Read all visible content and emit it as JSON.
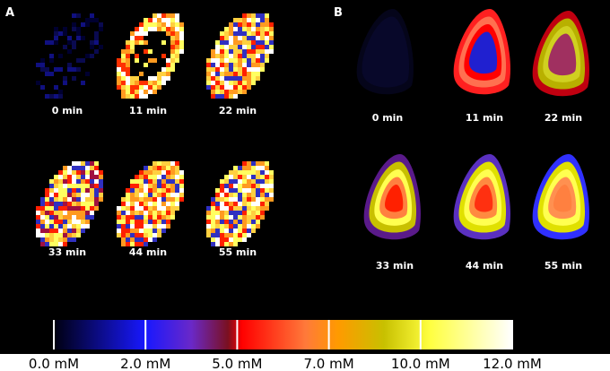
{
  "panels": [
    {
      "label": "A",
      "frames": [
        "0 min",
        "11 min",
        "22 min",
        "33 min",
        "44 min",
        "55 min"
      ]
    },
    {
      "label": "B",
      "frames": [
        "0 min",
        "11 min",
        "22 min",
        "33 min",
        "44 min",
        "55 min"
      ]
    }
  ],
  "colorbar": {
    "ticks": [
      "0.0 mM",
      "2.0 mM",
      "5.0 mM",
      "7.0 mM",
      "10.0 mM",
      "12.0 mM"
    ]
  }
}
